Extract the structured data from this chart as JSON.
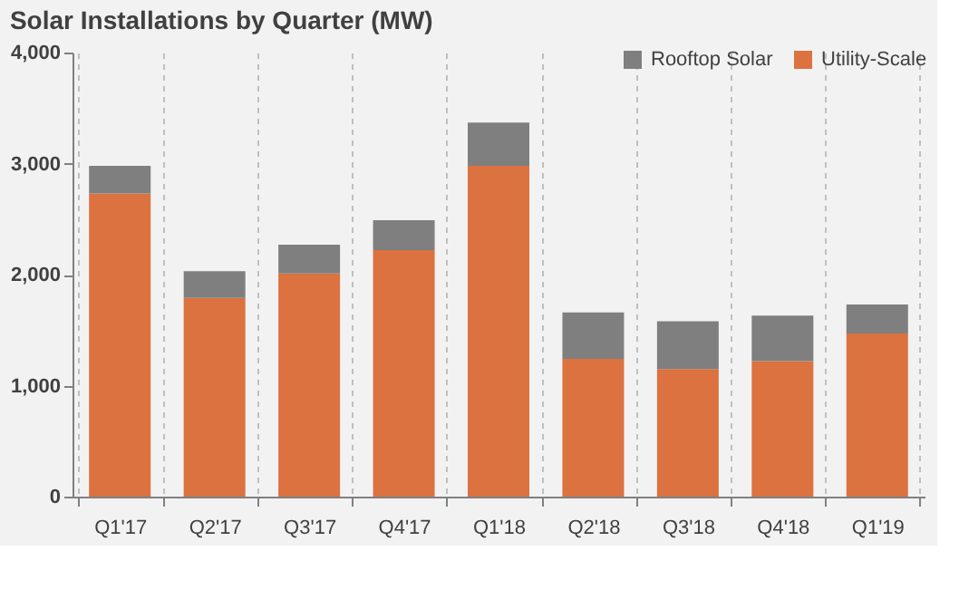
{
  "chart_data": {
    "type": "bar",
    "title": "Solar Installations by Quarter (MW)",
    "stacked": true,
    "categories": [
      "Q1'17",
      "Q2'17",
      "Q3'17",
      "Q4'17",
      "Q1'18",
      "Q2'18",
      "Q3'18",
      "Q4'18",
      "Q1'19"
    ],
    "series": [
      {
        "name": "Utility-Scale",
        "color": "#db7240",
        "values": [
          2730,
          1790,
          2010,
          2220,
          2980,
          1240,
          1150,
          1220,
          1470
        ]
      },
      {
        "name": "Rooftop Solar",
        "color": "#7f7f7f",
        "values": [
          250,
          240,
          260,
          270,
          390,
          420,
          430,
          410,
          260
        ]
      }
    ],
    "ylim": [
      0,
      4000
    ],
    "yticks": [
      {
        "value": 0,
        "label": "0"
      },
      {
        "value": 1000,
        "label": "1,000"
      },
      {
        "value": 2000,
        "label": "2,000"
      },
      {
        "value": 3000,
        "label": "3,000"
      },
      {
        "value": 4000,
        "label": "4,000"
      }
    ],
    "grid": "x",
    "legend": "top right"
  }
}
